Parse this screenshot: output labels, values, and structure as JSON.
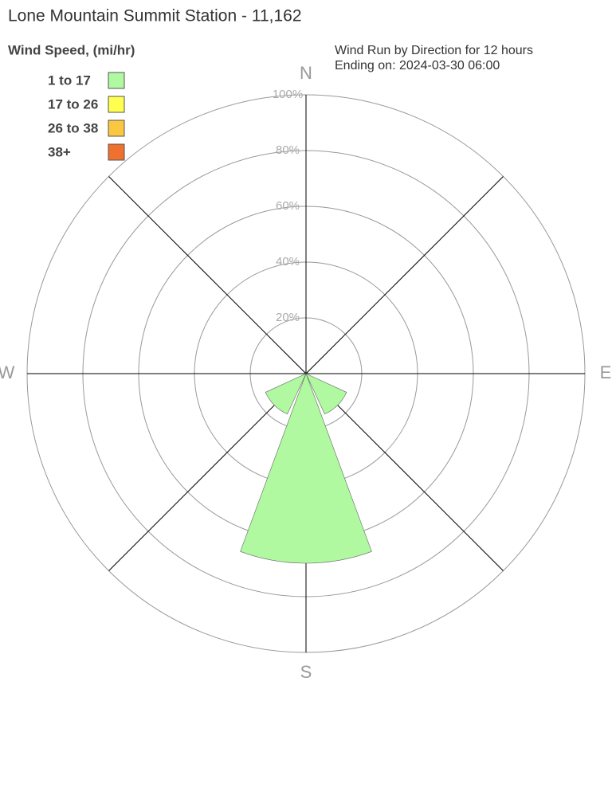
{
  "chart_data": {
    "type": "windrose",
    "title": "Lone Mountain Summit Station - 11,162",
    "legend_title": "Wind Speed, (mi/hr)",
    "subtitle": [
      "Wind Run by Direction for 12 hours",
      "Ending on: 2024-03-30 06:00"
    ],
    "categories": [
      "N",
      null,
      "E",
      null,
      "S",
      null,
      "W",
      null
    ],
    "series": [
      {
        "name": "1 to 17",
        "color": "#b0f9a0",
        "values": [
          0,
          0,
          0,
          16,
          68,
          16,
          0,
          0
        ]
      },
      {
        "name": "17 to 26",
        "color": "#ffff50",
        "values": [
          0,
          0,
          0,
          0,
          0,
          0,
          0,
          0
        ]
      },
      {
        "name": "26 to 38",
        "color": "#f9c840",
        "values": [
          0,
          0,
          0,
          0,
          0,
          0,
          0,
          0
        ]
      },
      {
        "name": "38+",
        "color": "#f07030",
        "values": [
          0,
          0,
          0,
          0,
          0,
          0,
          0,
          0
        ]
      }
    ],
    "rlim": [
      0,
      100
    ],
    "rticks": [
      {
        "value": 20,
        "label": "20%"
      },
      {
        "value": 40,
        "label": "40%"
      },
      {
        "value": 60,
        "label": "60%"
      },
      {
        "value": 80,
        "label": "80%"
      },
      {
        "value": 100,
        "label": "100%"
      }
    ],
    "stacked": true
  }
}
